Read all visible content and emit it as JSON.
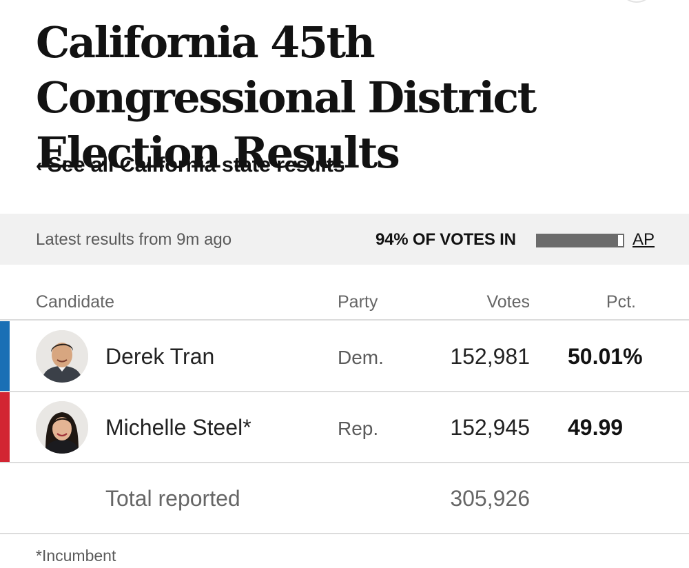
{
  "page": {
    "title": "California 45th Congressional District Election Results",
    "back_link": "See all California state results"
  },
  "status": {
    "latest": "Latest results from 9m ago",
    "votes_in": "94% OF VOTES IN",
    "votes_in_fraction": 0.94,
    "source": "AP"
  },
  "table": {
    "headers": {
      "candidate": "Candidate",
      "party": "Party",
      "votes": "Votes",
      "pct": "Pct."
    },
    "rows": [
      {
        "name": "Derek Tran",
        "party": "Dem.",
        "votes": "152,981",
        "pct": "50.01%",
        "party_color": "#1a6fb5"
      },
      {
        "name": "Michelle Steel*",
        "party": "Rep.",
        "votes": "152,945",
        "pct": "49.99",
        "party_color": "#d22532"
      }
    ],
    "total": {
      "label": "Total reported",
      "votes": "305,926"
    }
  },
  "footnote": "*Incumbent",
  "icons": {
    "back": "chevron-left-icon"
  }
}
